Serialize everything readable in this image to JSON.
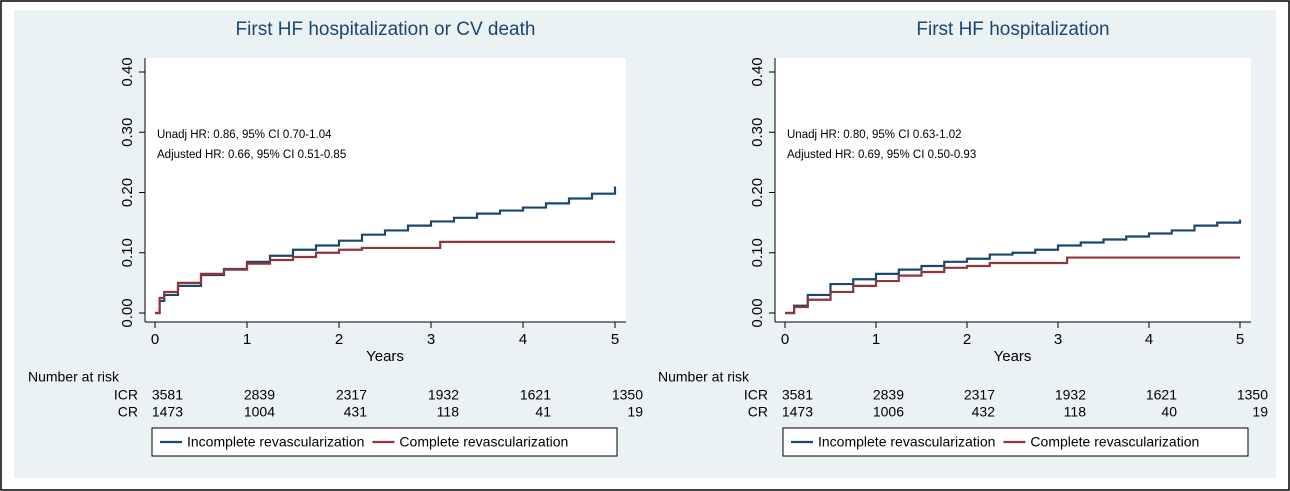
{
  "chart_data": [
    {
      "type": "line",
      "step": true,
      "title": "First HF hospitalization or CV death",
      "annotations": [
        "Unadj HR: 0.86, 95% CI 0.70-1.04",
        "Adjusted HR: 0.66, 95% CI 0.51-0.85"
      ],
      "xlabel": "Years",
      "xlim": [
        0,
        5
      ],
      "xticks": [
        0,
        1,
        2,
        3,
        4,
        5
      ],
      "ylim": [
        0,
        0.4
      ],
      "yticks": [
        {
          "value": 0,
          "label": "0.00"
        },
        {
          "value": 0.1,
          "label": "0.10"
        },
        {
          "value": 0.2,
          "label": "0.20"
        },
        {
          "value": 0.3,
          "label": "0.30"
        },
        {
          "value": 0.4,
          "label": "0.40"
        }
      ],
      "legend": "bottom",
      "series": [
        {
          "name": "Incomplete revascularization",
          "color": "#1a476f",
          "x": [
            0,
            0.05,
            0.1,
            0.25,
            0.5,
            0.75,
            1,
            1.25,
            1.5,
            1.75,
            2,
            2.25,
            2.5,
            2.75,
            3,
            3.25,
            3.5,
            3.75,
            4,
            4.25,
            4.5,
            4.75,
            5
          ],
          "values": [
            0,
            0.02,
            0.03,
            0.045,
            0.063,
            0.073,
            0.085,
            0.095,
            0.105,
            0.112,
            0.12,
            0.13,
            0.137,
            0.145,
            0.152,
            0.158,
            0.165,
            0.17,
            0.175,
            0.182,
            0.19,
            0.198,
            0.21
          ]
        },
        {
          "name": "Complete revascularization",
          "color": "#90353b",
          "x": [
            0,
            0.05,
            0.1,
            0.25,
            0.5,
            0.75,
            1,
            1.25,
            1.5,
            1.75,
            2,
            2.25,
            3.1,
            5
          ],
          "values": [
            0,
            0.025,
            0.035,
            0.05,
            0.065,
            0.072,
            0.082,
            0.088,
            0.093,
            0.1,
            0.105,
            0.108,
            0.118,
            0.118
          ]
        }
      ],
      "risk_table": {
        "title": "Number at risk",
        "rows": [
          {
            "name": "ICR",
            "values": [
              3581,
              2839,
              2317,
              1932,
              1621,
              1350
            ]
          },
          {
            "name": "CR",
            "values": [
              1473,
              1004,
              431,
              118,
              41,
              19
            ]
          }
        ]
      }
    },
    {
      "type": "line",
      "step": true,
      "title": "First HF hospitalization",
      "annotations": [
        "Unadj HR: 0.80, 95% CI 0.63-1.02",
        "Adjusted HR: 0.69, 95% CI 0.50-0.93"
      ],
      "xlabel": "Years",
      "xlim": [
        0,
        5
      ],
      "xticks": [
        0,
        1,
        2,
        3,
        4,
        5
      ],
      "ylim": [
        0,
        0.4
      ],
      "yticks": [
        {
          "value": 0,
          "label": "0.00"
        },
        {
          "value": 0.1,
          "label": "0.10"
        },
        {
          "value": 0.2,
          "label": "0.20"
        },
        {
          "value": 0.3,
          "label": "0.30"
        },
        {
          "value": 0.4,
          "label": "0.40"
        }
      ],
      "legend": "bottom",
      "series": [
        {
          "name": "Incomplete revascularization",
          "color": "#1a476f",
          "x": [
            0,
            0.1,
            0.25,
            0.5,
            0.75,
            1,
            1.25,
            1.5,
            1.75,
            2,
            2.25,
            2.5,
            2.75,
            3,
            3.25,
            3.5,
            3.75,
            4,
            4.25,
            4.5,
            4.75,
            5
          ],
          "values": [
            0,
            0.012,
            0.03,
            0.048,
            0.056,
            0.065,
            0.072,
            0.078,
            0.085,
            0.09,
            0.097,
            0.1,
            0.105,
            0.112,
            0.117,
            0.122,
            0.127,
            0.132,
            0.137,
            0.145,
            0.15,
            0.155
          ]
        },
        {
          "name": "Complete revascularization",
          "color": "#90353b",
          "x": [
            0,
            0.1,
            0.25,
            0.5,
            0.75,
            1,
            1.25,
            1.5,
            1.75,
            2,
            2.25,
            3.1,
            5
          ],
          "values": [
            0,
            0.01,
            0.022,
            0.035,
            0.045,
            0.053,
            0.062,
            0.068,
            0.075,
            0.078,
            0.083,
            0.092,
            0.092
          ]
        }
      ],
      "risk_table": {
        "title": "Number at risk",
        "rows": [
          {
            "name": "ICR",
            "values": [
              3581,
              2839,
              2317,
              1932,
              1621,
              1350
            ]
          },
          {
            "name": "CR",
            "values": [
              1473,
              1006,
              432,
              118,
              40,
              19
            ]
          }
        ]
      }
    }
  ]
}
